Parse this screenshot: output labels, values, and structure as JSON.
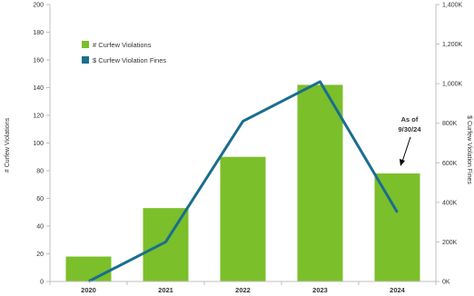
{
  "chart_data": {
    "type": "bar",
    "categories": [
      "2020",
      "2021",
      "2022",
      "2023",
      "2024"
    ],
    "series": [
      {
        "name": "# Curfew Violations",
        "type": "bar",
        "axis": "left",
        "color": "#7bbf2a",
        "values": [
          18,
          53,
          90,
          142,
          78
        ]
      },
      {
        "name": "$ Curfew Violation Fines",
        "type": "line",
        "axis": "right",
        "color": "#1a6e8e",
        "values": [
          0,
          200000,
          810000,
          1010000,
          350000
        ]
      }
    ],
    "y_left": {
      "label": "# Curfew Violations",
      "range": [
        0,
        200
      ],
      "ticks": [
        0,
        20,
        40,
        60,
        80,
        100,
        120,
        140,
        160,
        180,
        200
      ],
      "tick_labels": [
        "0",
        "20",
        "40",
        "60",
        "80",
        "100",
        "120",
        "140",
        "160",
        "180",
        "200"
      ]
    },
    "y_right": {
      "label": "$ Curfew Violation Fines",
      "range": [
        0,
        1400000
      ],
      "ticks": [
        0,
        200000,
        400000,
        600000,
        800000,
        1000000,
        1200000,
        1400000
      ],
      "tick_labels": [
        "0K",
        "200K",
        "400K",
        "600K",
        "800K",
        "1,000K",
        "1,200K",
        "1,400K"
      ]
    },
    "legend_position": "upper-left",
    "grid": false,
    "annotations": [
      {
        "text_lines": [
          "As of",
          "9/30/24"
        ],
        "category": "2024",
        "arrow": true
      }
    ]
  }
}
